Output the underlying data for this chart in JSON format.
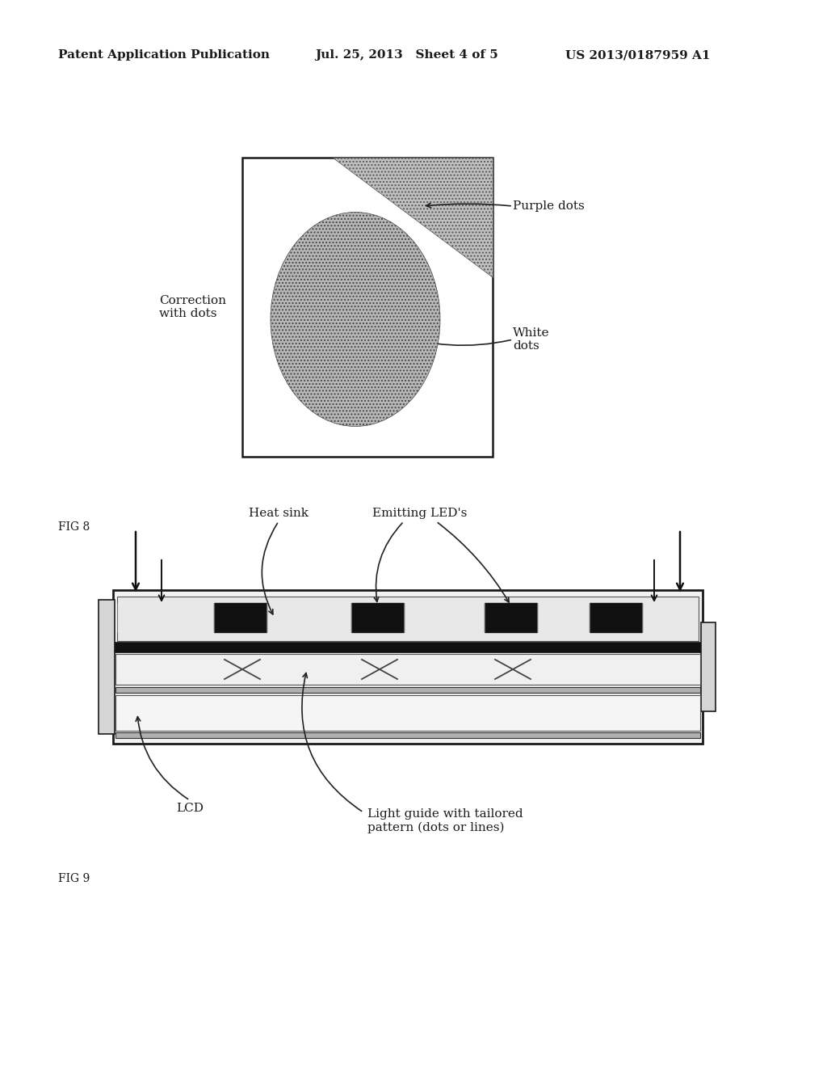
{
  "header_left": "Patent Application Publication",
  "header_mid": "Jul. 25, 2013   Sheet 4 of 5",
  "header_right": "US 2013/0187959 A1",
  "fig8_label": "FIG 8",
  "fig9_label": "FIG 9",
  "label_correction": "Correction\nwith dots",
  "label_purple": "Purple dots",
  "label_white": "White\ndots",
  "label_heatsink": "Heat sink",
  "label_leds": "Emitting LED's",
  "label_lcd": "LCD",
  "label_lightguide": "Light guide with tailored\npattern (dots or lines)",
  "bg_color": "#ffffff",
  "text_color": "#1a1a1a"
}
